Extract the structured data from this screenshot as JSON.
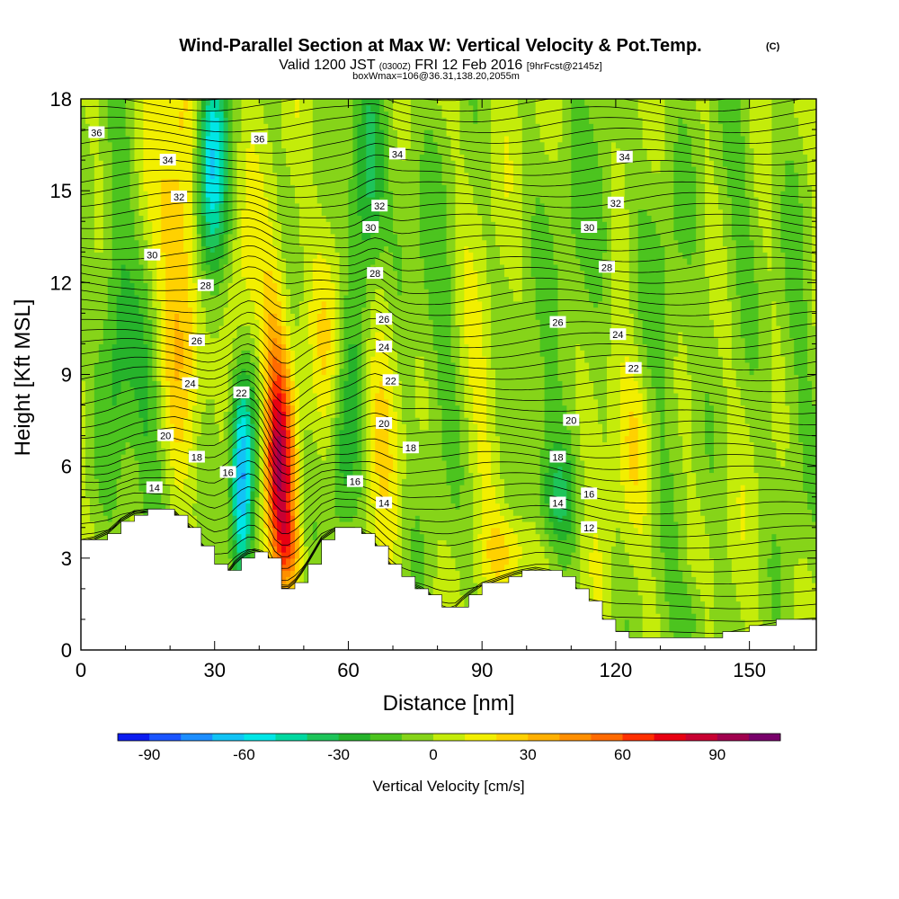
{
  "title": {
    "main": "Wind-Parallel Section at Max W: Vertical Velocity & Pot.Temp.",
    "copyright": "(C)",
    "valid_prefix": "Valid 1200 JST",
    "valid_utc": "(0300Z)",
    "valid_date": "FRI 12 Feb 2016",
    "forecast": "[9hrFcst@2145z]",
    "box_info": "boxWmax=106@36.31,138.20,2055m"
  },
  "chart_data": {
    "type": "heatmap",
    "xlabel": "Distance [nm]",
    "ylabel": "Height [Kft MSL]",
    "xlim": [
      0,
      165
    ],
    "ylim": [
      0,
      18
    ],
    "x_ticks": [
      "0",
      "30",
      "60",
      "90",
      "120",
      "150"
    ],
    "y_ticks": [
      "0",
      "3",
      "6",
      "9",
      "12",
      "15",
      "18"
    ],
    "colorbar": {
      "label": "Vertical Velocity [cm/s]",
      "tick_labels": [
        "-90",
        "-60",
        "-30",
        "0",
        "30",
        "60",
        "90"
      ],
      "tick_values": [
        -90,
        -60,
        -30,
        0,
        30,
        60,
        90
      ],
      "min": -100,
      "max": 110,
      "bins": [
        "#0b1cf0",
        "#1a55ff",
        "#1d8eff",
        "#12c3f5",
        "#00e6e6",
        "#00d8a0",
        "#1ec45a",
        "#26b32b",
        "#4cc41f",
        "#86d419",
        "#c4ec0a",
        "#f2ef00",
        "#ffd100",
        "#ffb000",
        "#ff8f00",
        "#ff6a00",
        "#ff3000",
        "#e80012",
        "#c80032",
        "#a0004e",
        "#78006a"
      ]
    },
    "terrain_kft": [
      [
        0,
        3.5
      ],
      [
        3,
        3.6
      ],
      [
        6,
        3.8
      ],
      [
        9,
        4.2
      ],
      [
        12,
        4.45
      ],
      [
        15,
        4.5
      ],
      [
        18,
        4.5
      ],
      [
        21,
        4.45
      ],
      [
        24,
        4.0
      ],
      [
        27,
        3.4
      ],
      [
        30,
        2.7
      ],
      [
        33,
        2.5
      ],
      [
        35,
        2.9
      ],
      [
        38,
        3.2
      ],
      [
        40,
        3.2
      ],
      [
        42,
        3.0
      ],
      [
        44,
        2.1
      ],
      [
        46,
        1.95
      ],
      [
        48,
        2.2
      ],
      [
        50,
        2.6
      ],
      [
        52,
        3.1
      ],
      [
        54,
        3.6
      ],
      [
        57,
        3.9
      ],
      [
        60,
        3.9
      ],
      [
        62,
        3.9
      ],
      [
        64,
        3.7
      ],
      [
        66,
        3.4
      ],
      [
        68,
        3.0
      ],
      [
        70,
        2.6
      ],
      [
        72,
        2.3
      ],
      [
        74,
        2.1
      ],
      [
        76,
        2.0
      ],
      [
        78,
        1.8
      ],
      [
        80,
        1.5
      ],
      [
        82,
        1.3
      ],
      [
        84,
        1.4
      ],
      [
        86,
        1.7
      ],
      [
        88,
        1.9
      ],
      [
        90,
        2.1
      ],
      [
        94,
        2.3
      ],
      [
        98,
        2.5
      ],
      [
        102,
        2.6
      ],
      [
        106,
        2.5
      ],
      [
        108,
        2.3
      ],
      [
        110,
        2.1
      ],
      [
        112,
        1.8
      ],
      [
        114,
        1.5
      ],
      [
        116,
        1.2
      ],
      [
        118,
        0.9
      ],
      [
        120,
        0.6
      ],
      [
        122,
        0.45
      ],
      [
        124,
        0.35
      ],
      [
        128,
        0.3
      ],
      [
        134,
        0.35
      ],
      [
        140,
        0.45
      ],
      [
        146,
        0.6
      ],
      [
        152,
        0.8
      ],
      [
        158,
        0.95
      ],
      [
        165,
        1.0
      ]
    ],
    "w_features": [
      {
        "x": 8,
        "y": 11,
        "sx": 2.5,
        "sy": 4.0,
        "amp": -25
      },
      {
        "x": 15,
        "y": 7,
        "sx": 3.5,
        "sy": 4.0,
        "amp": -18
      },
      {
        "x": 23,
        "y": 15,
        "sx": 4.5,
        "sy": 3.5,
        "amp": 28
      },
      {
        "x": 23,
        "y": 10,
        "sx": 4.0,
        "sy": 3.0,
        "amp": 22
      },
      {
        "x": 29,
        "y": 16,
        "sx": 2.5,
        "sy": 2.5,
        "amp": -55
      },
      {
        "x": 29,
        "y": 13,
        "sx": 3.0,
        "sy": 3.0,
        "amp": -25
      },
      {
        "x": 36,
        "y": 10,
        "sx": 2.5,
        "sy": 3.0,
        "amp": 22
      },
      {
        "x": 36,
        "y": 5.5,
        "sx": 1.8,
        "sy": 2.6,
        "amp": -80
      },
      {
        "x": 40,
        "y": 8,
        "sx": 2.0,
        "sy": 2.0,
        "amp": -20
      },
      {
        "x": 45,
        "y": 5.5,
        "sx": 2.3,
        "sy": 2.5,
        "amp": 70
      },
      {
        "x": 43,
        "y": 9,
        "sx": 2.5,
        "sy": 3.0,
        "amp": 35
      },
      {
        "x": 47,
        "y": 3.3,
        "sx": 2.0,
        "sy": 0.8,
        "amp": 25
      },
      {
        "x": 56,
        "y": 10,
        "sx": 2.5,
        "sy": 3.0,
        "amp": 18
      },
      {
        "x": 58,
        "y": 6,
        "sx": 2.5,
        "sy": 2.5,
        "amp": -22
      },
      {
        "x": 62,
        "y": 12,
        "sx": 2.5,
        "sy": 3.5,
        "amp": -20
      },
      {
        "x": 65,
        "y": 15.5,
        "sx": 2.5,
        "sy": 2.5,
        "amp": -30
      },
      {
        "x": 68,
        "y": 9,
        "sx": 3.0,
        "sy": 3.5,
        "amp": 22
      },
      {
        "x": 72,
        "y": 14,
        "sx": 3.0,
        "sy": 3.5,
        "amp": -12
      },
      {
        "x": 80,
        "y": 10,
        "sx": 3.5,
        "sy": 4.0,
        "amp": -14
      },
      {
        "x": 90,
        "y": 9,
        "sx": 3.5,
        "sy": 2.5,
        "amp": 12
      },
      {
        "x": 97,
        "y": 3.2,
        "sx": 4.0,
        "sy": 0.9,
        "amp": 25
      },
      {
        "x": 101,
        "y": 7,
        "sx": 4.0,
        "sy": 3.0,
        "amp": -12
      },
      {
        "x": 107,
        "y": 5,
        "sx": 3.0,
        "sy": 1.2,
        "amp": -22
      },
      {
        "x": 110,
        "y": 12,
        "sx": 3.5,
        "sy": 3.0,
        "amp": -15
      },
      {
        "x": 117,
        "y": 13.5,
        "sx": 2.5,
        "sy": 2.5,
        "amp": -22
      },
      {
        "x": 117,
        "y": 10,
        "sx": 3.0,
        "sy": 3.0,
        "amp": 14
      },
      {
        "x": 124,
        "y": 7,
        "sx": 3.0,
        "sy": 2.0,
        "amp": 15
      },
      {
        "x": 131,
        "y": 11,
        "sx": 4.0,
        "sy": 4.0,
        "amp": -14
      },
      {
        "x": 137,
        "y": 1.0,
        "sx": 3.0,
        "sy": 1.0,
        "amp": -18
      },
      {
        "x": 147,
        "y": 15,
        "sx": 4.0,
        "sy": 3.0,
        "amp": -12
      },
      {
        "x": 160,
        "y": 9,
        "sx": 3.0,
        "sy": 4.0,
        "amp": -12
      }
    ],
    "contour_labels": [
      {
        "text": "36",
        "x": 3.5,
        "y": 16.9
      },
      {
        "text": "34",
        "x": 19.5,
        "y": 16.0
      },
      {
        "text": "32",
        "x": 22,
        "y": 14.8
      },
      {
        "text": "30",
        "x": 16,
        "y": 12.9
      },
      {
        "text": "28",
        "x": 28,
        "y": 11.9
      },
      {
        "text": "26",
        "x": 26,
        "y": 10.1
      },
      {
        "text": "24",
        "x": 24.5,
        "y": 8.7
      },
      {
        "text": "22",
        "x": 36,
        "y": 8.4
      },
      {
        "text": "20",
        "x": 19,
        "y": 7.0
      },
      {
        "text": "18",
        "x": 26,
        "y": 6.3
      },
      {
        "text": "16",
        "x": 33,
        "y": 5.8
      },
      {
        "text": "14",
        "x": 16.5,
        "y": 5.3
      },
      {
        "text": "36",
        "x": 40,
        "y": 16.7
      },
      {
        "text": "34",
        "x": 71,
        "y": 16.2
      },
      {
        "text": "32",
        "x": 67,
        "y": 14.5
      },
      {
        "text": "30",
        "x": 65,
        "y": 13.8
      },
      {
        "text": "28",
        "x": 66,
        "y": 12.3
      },
      {
        "text": "26",
        "x": 68,
        "y": 10.8
      },
      {
        "text": "24",
        "x": 68,
        "y": 9.9
      },
      {
        "text": "22",
        "x": 69.5,
        "y": 8.8
      },
      {
        "text": "20",
        "x": 68,
        "y": 7.4
      },
      {
        "text": "18",
        "x": 74,
        "y": 6.6
      },
      {
        "text": "16",
        "x": 61.5,
        "y": 5.5
      },
      {
        "text": "14",
        "x": 68,
        "y": 4.8
      },
      {
        "text": "34",
        "x": 122,
        "y": 16.1
      },
      {
        "text": "32",
        "x": 120,
        "y": 14.6
      },
      {
        "text": "30",
        "x": 114,
        "y": 13.8
      },
      {
        "text": "28",
        "x": 118,
        "y": 12.5
      },
      {
        "text": "26",
        "x": 107,
        "y": 10.7
      },
      {
        "text": "24",
        "x": 120.5,
        "y": 10.3
      },
      {
        "text": "22",
        "x": 124,
        "y": 9.2
      },
      {
        "text": "20",
        "x": 110,
        "y": 7.5
      },
      {
        "text": "18",
        "x": 107,
        "y": 6.3
      },
      {
        "text": "16",
        "x": 114,
        "y": 5.1
      },
      {
        "text": "14",
        "x": 107,
        "y": 4.8
      },
      {
        "text": "12",
        "x": 114,
        "y": 4.0
      }
    ]
  }
}
